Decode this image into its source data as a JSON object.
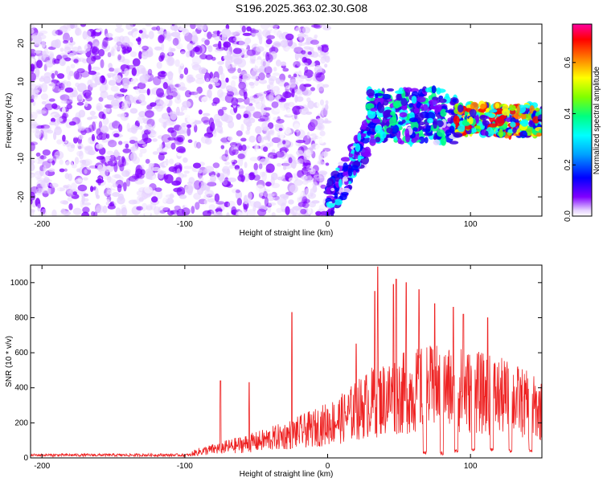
{
  "title": "S196.2025.363.02.30.G08",
  "chart_data": [
    {
      "type": "heatmap",
      "xlabel": "Height of straight line (km)",
      "ylabel": "Frequency (Hz)",
      "xlim": [
        -208,
        150
      ],
      "ylim": [
        -25,
        25
      ],
      "xticks": [
        -200,
        -100,
        0,
        100
      ],
      "yticks": [
        -20,
        -10,
        0,
        10,
        20
      ],
      "colorbar": {
        "label": "Normalized spectral amplitude",
        "range": [
          0,
          0.75
        ],
        "ticks": [
          0.0,
          0.2,
          0.4,
          0.6
        ],
        "colors": [
          "#ffffff",
          "#e6d2ff",
          "#8000ff",
          "#3a00e0",
          "#0000ff",
          "#00ffff",
          "#00ff80",
          "#80ff00",
          "#ffff00",
          "#ff8000",
          "#ff0000",
          "#ff00a0"
        ]
      },
      "segments": [
        {
          "x": [
            -208,
            0
          ],
          "y_center": 0,
          "y_halfwidth": 25,
          "level": 0.12
        },
        {
          "x": [
            0,
            28
          ],
          "y_start": -22,
          "y_end": -5,
          "level": 0.25
        },
        {
          "x": [
            28,
            90
          ],
          "y_center": 1,
          "y_halfwidth": 7,
          "level": 0.3
        },
        {
          "x": [
            90,
            150
          ],
          "y_center": 0,
          "y_halfwidth": 4,
          "level": 0.45
        }
      ]
    },
    {
      "type": "line",
      "xlabel": "Height of straight line (km)",
      "ylabel": "SNR (10 * v/v)",
      "xlim": [
        -208,
        150
      ],
      "ylim": [
        0,
        1100
      ],
      "xticks": [
        -200,
        -100,
        0,
        100
      ],
      "yticks": [
        0,
        200,
        400,
        600,
        800,
        1000
      ],
      "color": "#ee2222",
      "envelope": [
        {
          "x": -208,
          "y": 15
        },
        {
          "x": -100,
          "y": 20
        },
        {
          "x": -90,
          "y": 50
        },
        {
          "x": -70,
          "y": 90
        },
        {
          "x": -50,
          "y": 130
        },
        {
          "x": -30,
          "y": 180
        },
        {
          "x": -10,
          "y": 240
        },
        {
          "x": 10,
          "y": 320
        },
        {
          "x": 30,
          "y": 450
        },
        {
          "x": 50,
          "y": 520
        },
        {
          "x": 70,
          "y": 560
        },
        {
          "x": 90,
          "y": 560
        },
        {
          "x": 110,
          "y": 520
        },
        {
          "x": 130,
          "y": 480
        },
        {
          "x": 150,
          "y": 380
        }
      ],
      "spikes": [
        {
          "x": -75,
          "y": 440
        },
        {
          "x": -55,
          "y": 430
        },
        {
          "x": -25,
          "y": 830
        },
        {
          "x": 20,
          "y": 650
        },
        {
          "x": 33,
          "y": 950
        },
        {
          "x": 35,
          "y": 1090
        },
        {
          "x": 46,
          "y": 990
        },
        {
          "x": 48,
          "y": 1020
        },
        {
          "x": 55,
          "y": 1000
        },
        {
          "x": 64,
          "y": 960
        },
        {
          "x": 75,
          "y": 880
        },
        {
          "x": 88,
          "y": 860
        },
        {
          "x": 95,
          "y": 820
        },
        {
          "x": 112,
          "y": 800
        }
      ],
      "dips": [
        {
          "x": 68,
          "y": 20
        },
        {
          "x": 80,
          "y": 15
        },
        {
          "x": 90,
          "y": 30
        },
        {
          "x": 102,
          "y": 40
        },
        {
          "x": 115,
          "y": 40
        },
        {
          "x": 128,
          "y": 30
        },
        {
          "x": 142,
          "y": 30
        }
      ]
    }
  ]
}
